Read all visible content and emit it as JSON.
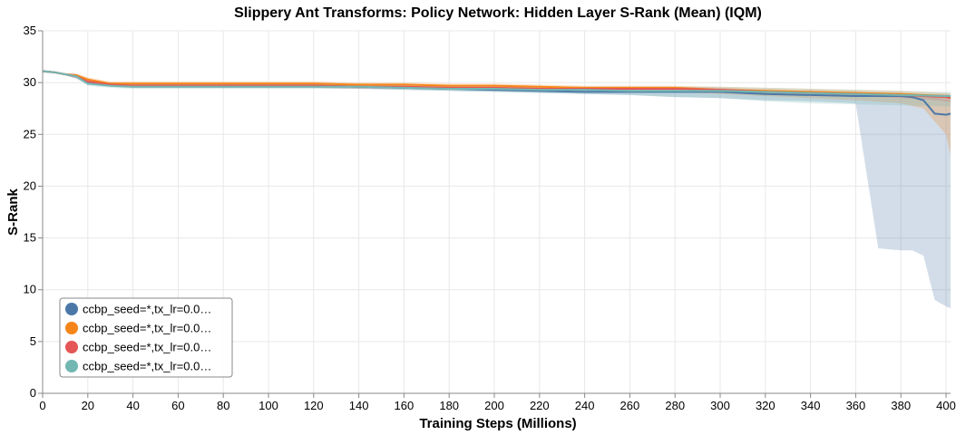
{
  "chart_data": {
    "type": "line",
    "title": "Slippery Ant Transforms: Policy Network: Hidden Layer S-Rank (Mean) (IQM)",
    "xlabel": "Training Steps (Millions)",
    "ylabel": "S-Rank",
    "xlim": [
      0,
      402
    ],
    "ylim": [
      0,
      35
    ],
    "x_ticks": [
      0,
      20,
      40,
      60,
      80,
      100,
      120,
      140,
      160,
      180,
      200,
      220,
      240,
      260,
      280,
      300,
      320,
      340,
      360,
      380,
      400
    ],
    "y_ticks": [
      0,
      5,
      10,
      15,
      20,
      25,
      30,
      35
    ],
    "grid": true,
    "legend_position": "bottom-left",
    "series": [
      {
        "name": "ccbp_seed=*,tx_lr=0.0…",
        "color": "#4c78a8",
        "x": [
          0,
          5,
          10,
          15,
          20,
          30,
          40,
          60,
          80,
          100,
          120,
          140,
          160,
          180,
          200,
          220,
          240,
          260,
          280,
          300,
          320,
          340,
          360,
          370,
          380,
          385,
          390,
          395,
          400,
          402
        ],
        "y": [
          31.1,
          31.0,
          30.8,
          30.6,
          30.0,
          29.8,
          29.7,
          29.7,
          29.7,
          29.7,
          29.7,
          29.6,
          29.5,
          29.4,
          29.3,
          29.2,
          29.1,
          29.1,
          29.1,
          29.1,
          28.9,
          28.8,
          28.7,
          28.7,
          28.7,
          28.6,
          28.3,
          27.0,
          26.9,
          27.0
        ],
        "lower": [
          31.0,
          30.9,
          30.7,
          30.4,
          29.8,
          29.6,
          29.5,
          29.5,
          29.5,
          29.5,
          29.5,
          29.4,
          29.3,
          29.2,
          29.1,
          29.0,
          28.9,
          28.8,
          28.6,
          28.5,
          28.3,
          28.2,
          28.0,
          14.0,
          13.8,
          13.8,
          13.3,
          9.0,
          8.4,
          8.2
        ],
        "upper": [
          31.2,
          31.1,
          30.9,
          30.8,
          30.2,
          30.0,
          29.9,
          29.9,
          29.9,
          29.9,
          29.9,
          29.8,
          29.7,
          29.6,
          29.5,
          29.4,
          29.3,
          29.3,
          29.3,
          29.3,
          29.2,
          29.1,
          29.0,
          29.0,
          29.0,
          28.9,
          28.8,
          28.6,
          28.4,
          28.3
        ]
      },
      {
        "name": "ccbp_seed=*,tx_lr=0.0…",
        "color": "#f58518",
        "x": [
          0,
          5,
          10,
          15,
          20,
          30,
          40,
          60,
          80,
          100,
          120,
          140,
          160,
          180,
          200,
          220,
          240,
          260,
          280,
          300,
          320,
          340,
          360,
          380,
          390,
          400,
          402
        ],
        "y": [
          31.1,
          31.0,
          30.8,
          30.7,
          30.3,
          29.9,
          29.9,
          29.9,
          29.9,
          29.9,
          29.9,
          29.8,
          29.8,
          29.7,
          29.7,
          29.6,
          29.5,
          29.5,
          29.5,
          29.3,
          29.2,
          29.1,
          29.0,
          28.9,
          28.8,
          28.7,
          28.6
        ],
        "lower": [
          31.0,
          30.9,
          30.7,
          30.5,
          30.1,
          29.7,
          29.7,
          29.7,
          29.7,
          29.7,
          29.7,
          29.6,
          29.6,
          29.5,
          29.5,
          29.4,
          29.3,
          29.2,
          29.1,
          28.9,
          28.7,
          28.5,
          28.3,
          28.0,
          27.5,
          25.0,
          23.0
        ],
        "upper": [
          31.2,
          31.1,
          30.9,
          30.9,
          30.5,
          30.1,
          30.1,
          30.1,
          30.1,
          30.1,
          30.1,
          30.0,
          30.0,
          29.9,
          29.9,
          29.8,
          29.7,
          29.7,
          29.7,
          29.6,
          29.5,
          29.4,
          29.3,
          29.2,
          29.1,
          29.0,
          29.0
        ]
      },
      {
        "name": "ccbp_seed=*,tx_lr=0.0…",
        "color": "#e45756",
        "x": [
          0,
          5,
          10,
          15,
          20,
          30,
          40,
          60,
          80,
          100,
          120,
          140,
          160,
          180,
          200,
          220,
          240,
          260,
          280,
          300,
          320,
          340,
          360,
          380,
          390,
          400,
          402
        ],
        "y": [
          31.1,
          31.0,
          30.8,
          30.6,
          30.1,
          29.8,
          29.7,
          29.7,
          29.7,
          29.7,
          29.7,
          29.6,
          29.6,
          29.5,
          29.5,
          29.4,
          29.4,
          29.4,
          29.4,
          29.3,
          29.1,
          29.0,
          28.9,
          28.8,
          28.7,
          28.6,
          28.5
        ],
        "lower": [
          31.0,
          30.9,
          30.7,
          30.4,
          29.9,
          29.6,
          29.5,
          29.5,
          29.5,
          29.5,
          29.5,
          29.4,
          29.4,
          29.3,
          29.3,
          29.2,
          29.2,
          29.2,
          29.2,
          29.1,
          28.9,
          28.8,
          28.7,
          28.5,
          28.4,
          28.2,
          28.1
        ],
        "upper": [
          31.2,
          31.1,
          30.9,
          30.8,
          30.3,
          30.0,
          29.9,
          29.9,
          29.9,
          29.9,
          29.9,
          29.8,
          29.8,
          29.7,
          29.7,
          29.6,
          29.6,
          29.6,
          29.6,
          29.5,
          29.3,
          29.2,
          29.1,
          29.0,
          28.9,
          28.9,
          28.8
        ]
      },
      {
        "name": "ccbp_seed=*,tx_lr=0.0…",
        "color": "#72b7b2",
        "x": [
          0,
          5,
          10,
          15,
          20,
          30,
          40,
          60,
          80,
          100,
          120,
          140,
          160,
          180,
          200,
          220,
          240,
          260,
          280,
          300,
          320,
          340,
          360,
          380,
          400,
          402
        ],
        "y": [
          31.1,
          31.0,
          30.8,
          30.6,
          29.9,
          29.7,
          29.6,
          29.6,
          29.6,
          29.6,
          29.6,
          29.6,
          29.5,
          29.4,
          29.4,
          29.3,
          29.3,
          29.2,
          29.2,
          29.2,
          29.1,
          29.0,
          28.9,
          28.8,
          28.7,
          28.7
        ],
        "lower": [
          31.0,
          30.9,
          30.7,
          30.4,
          29.7,
          29.5,
          29.4,
          29.4,
          29.4,
          29.4,
          29.4,
          29.4,
          29.3,
          29.2,
          29.1,
          29.0,
          28.9,
          28.8,
          28.6,
          28.5,
          28.2,
          28.0,
          27.9,
          27.8,
          27.7,
          27.7
        ],
        "upper": [
          31.2,
          31.1,
          30.9,
          30.8,
          30.1,
          29.9,
          29.8,
          29.8,
          29.8,
          29.8,
          29.8,
          29.8,
          29.7,
          29.6,
          29.6,
          29.6,
          29.6,
          29.6,
          29.6,
          29.6,
          29.5,
          29.4,
          29.3,
          29.2,
          29.1,
          29.1
        ]
      }
    ]
  }
}
